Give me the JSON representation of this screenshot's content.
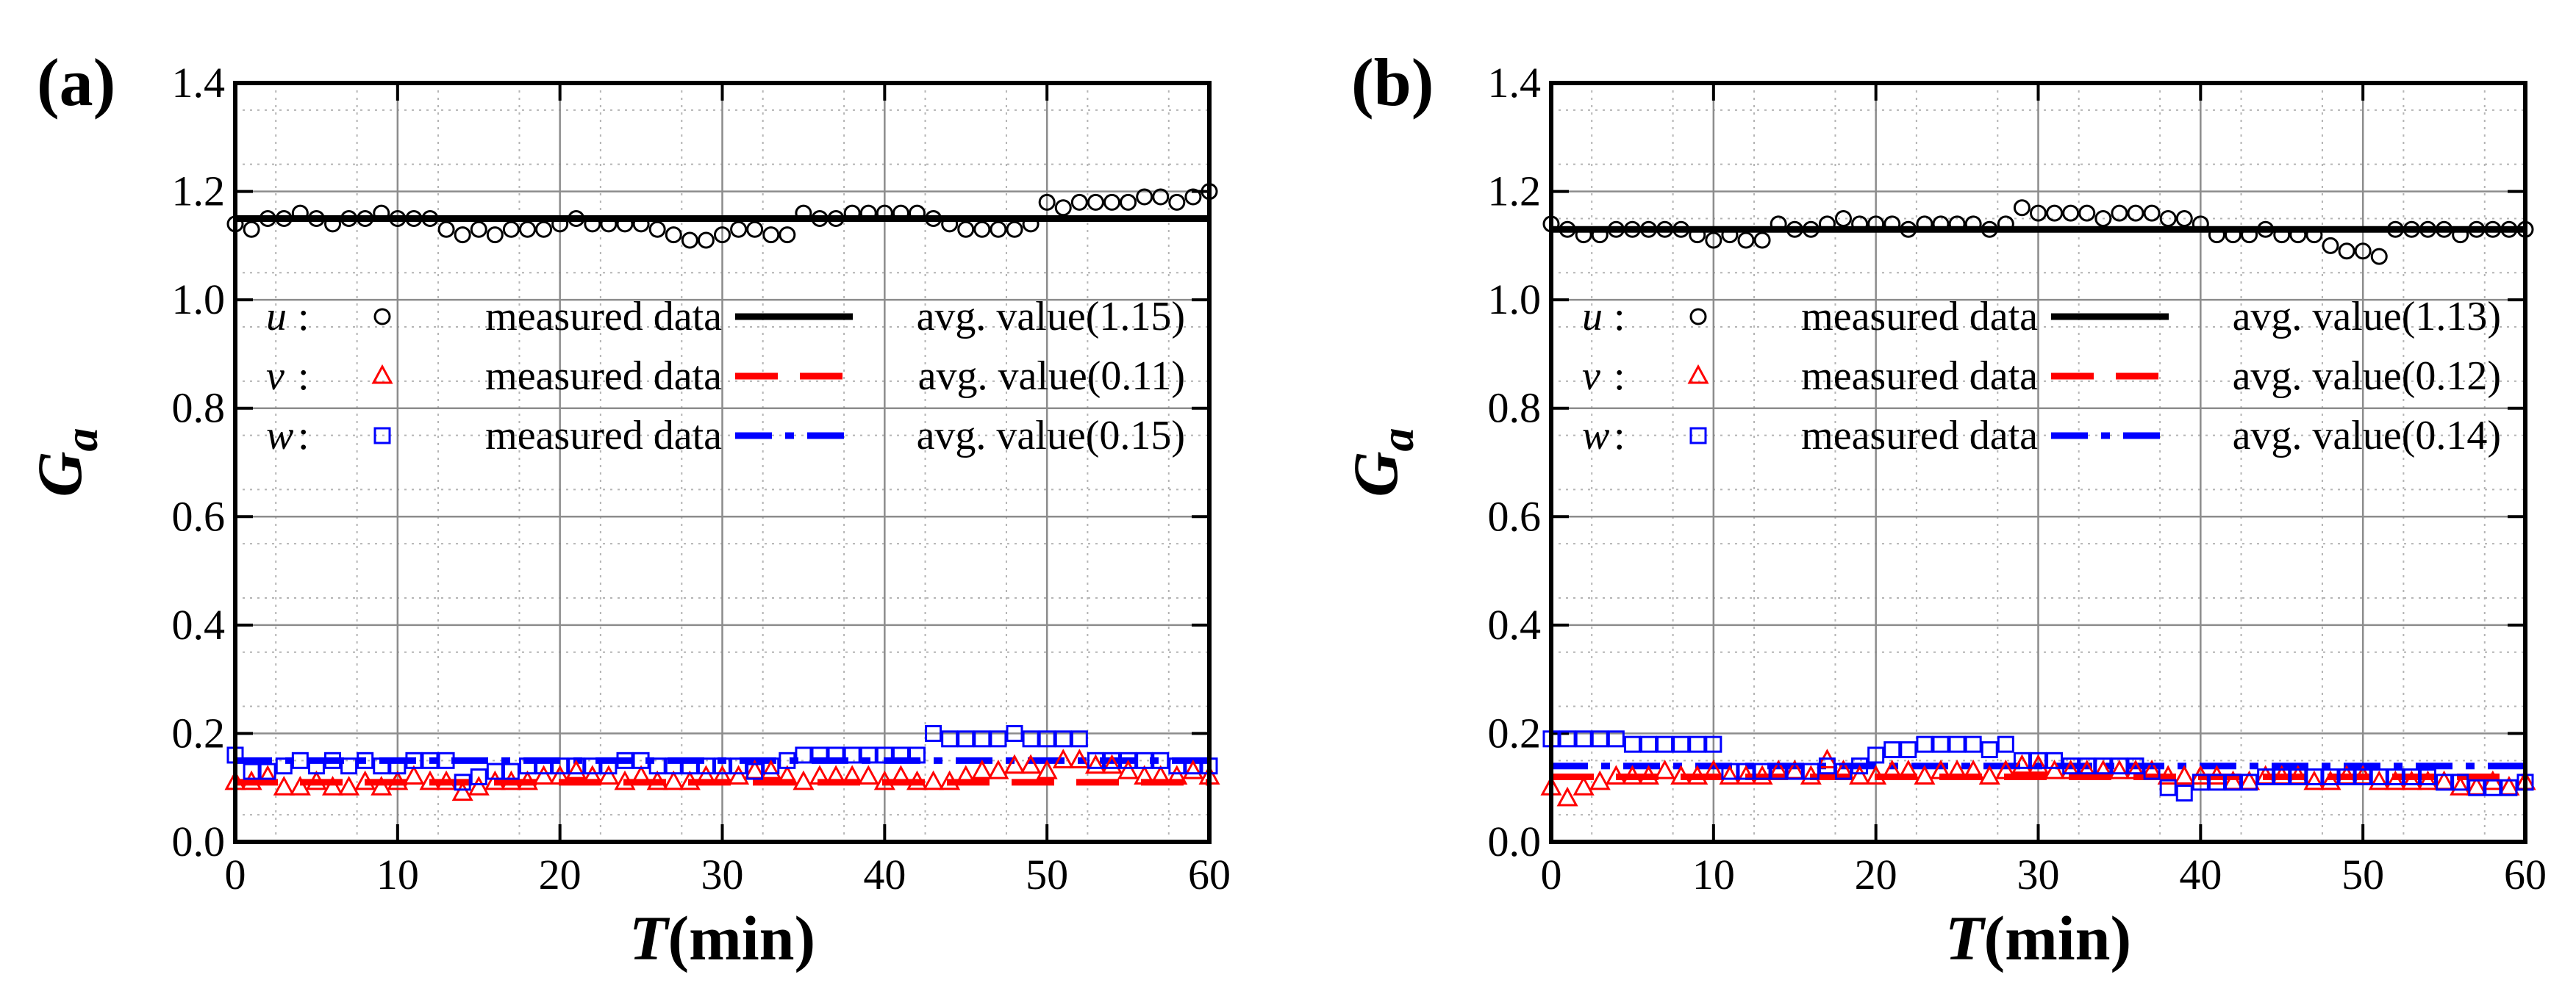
{
  "chart_data": [
    {
      "panel_label": "(a)",
      "type": "scatter",
      "title": "",
      "xlabel_main": "T",
      "xlabel_unit": "(min)",
      "ylabel_main": "G",
      "ylabel_sub": "a",
      "xlim": [
        0,
        60
      ],
      "ylim": [
        0.0,
        1.4
      ],
      "xticks": [
        "0",
        "10",
        "20",
        "30",
        "40",
        "50",
        "60"
      ],
      "yticks": [
        "0.0",
        "0.2",
        "0.4",
        "0.6",
        "0.8",
        "1.0",
        "1.2",
        "1.4"
      ],
      "grid": true,
      "series": [
        {
          "component": "u",
          "marker": "circle",
          "color": "#000000",
          "measured_label": "measured data",
          "avg_label": "avg. value(1.15)",
          "avg": 1.15,
          "line_style": "solid",
          "x": [
            0,
            1,
            2,
            3,
            4,
            5,
            6,
            7,
            8,
            9,
            10,
            11,
            12,
            13,
            14,
            15,
            16,
            17,
            18,
            19,
            20,
            21,
            22,
            23,
            24,
            25,
            26,
            27,
            28,
            29,
            30,
            31,
            32,
            33,
            34,
            35,
            36,
            37,
            38,
            39,
            40,
            41,
            42,
            43,
            44,
            45,
            46,
            47,
            48,
            49,
            50,
            51,
            52,
            53,
            54,
            55,
            56,
            57,
            58,
            59,
            60
          ],
          "values": [
            1.14,
            1.13,
            1.15,
            1.15,
            1.16,
            1.15,
            1.14,
            1.15,
            1.15,
            1.16,
            1.15,
            1.15,
            1.15,
            1.13,
            1.12,
            1.13,
            1.12,
            1.13,
            1.13,
            1.13,
            1.14,
            1.15,
            1.14,
            1.14,
            1.14,
            1.14,
            1.13,
            1.12,
            1.11,
            1.11,
            1.12,
            1.13,
            1.13,
            1.12,
            1.12,
            1.16,
            1.15,
            1.15,
            1.16,
            1.16,
            1.16,
            1.16,
            1.16,
            1.15,
            1.14,
            1.13,
            1.13,
            1.13,
            1.13,
            1.14,
            1.18,
            1.17,
            1.18,
            1.18,
            1.18,
            1.18,
            1.19,
            1.19,
            1.18,
            1.19,
            1.2
          ]
        },
        {
          "component": "v",
          "marker": "triangle",
          "color": "#ff0000",
          "measured_label": "measured data",
          "avg_label": "avg. value(0.11)",
          "avg": 0.11,
          "line_style": "dashed",
          "x": [
            0,
            1,
            2,
            3,
            4,
            5,
            6,
            7,
            8,
            9,
            10,
            11,
            12,
            13,
            14,
            15,
            16,
            17,
            18,
            19,
            20,
            21,
            22,
            23,
            24,
            25,
            26,
            27,
            28,
            29,
            30,
            31,
            32,
            33,
            34,
            35,
            36,
            37,
            38,
            39,
            40,
            41,
            42,
            43,
            44,
            45,
            46,
            47,
            48,
            49,
            50,
            51,
            52,
            53,
            54,
            55,
            56,
            57,
            58,
            59,
            60
          ],
          "values": [
            0.11,
            0.11,
            0.12,
            0.1,
            0.1,
            0.11,
            0.1,
            0.1,
            0.11,
            0.1,
            0.11,
            0.12,
            0.11,
            0.11,
            0.09,
            0.1,
            0.11,
            0.11,
            0.11,
            0.12,
            0.12,
            0.13,
            0.12,
            0.12,
            0.11,
            0.12,
            0.11,
            0.11,
            0.11,
            0.12,
            0.12,
            0.12,
            0.13,
            0.13,
            0.12,
            0.11,
            0.12,
            0.12,
            0.12,
            0.12,
            0.11,
            0.12,
            0.11,
            0.11,
            0.11,
            0.12,
            0.13,
            0.13,
            0.14,
            0.14,
            0.13,
            0.15,
            0.15,
            0.14,
            0.14,
            0.13,
            0.12,
            0.12,
            0.12,
            0.13,
            0.12
          ]
        },
        {
          "component": "w",
          "marker": "square",
          "color": "#0000ff",
          "measured_label": "measured data",
          "avg_label": "avg. value(0.15)",
          "avg": 0.15,
          "line_style": "dashdot",
          "x": [
            0,
            1,
            2,
            3,
            4,
            5,
            6,
            7,
            8,
            9,
            10,
            11,
            12,
            13,
            14,
            15,
            16,
            17,
            18,
            19,
            20,
            21,
            22,
            23,
            24,
            25,
            26,
            27,
            28,
            29,
            30,
            31,
            32,
            33,
            34,
            35,
            36,
            37,
            38,
            39,
            40,
            41,
            42,
            43,
            44,
            45,
            46,
            47,
            48,
            49,
            50,
            51,
            52,
            53,
            54,
            55,
            56,
            57,
            58,
            59,
            60
          ],
          "values": [
            0.16,
            0.13,
            0.13,
            0.14,
            0.15,
            0.14,
            0.15,
            0.14,
            0.15,
            0.14,
            0.14,
            0.15,
            0.15,
            0.15,
            0.11,
            0.12,
            0.13,
            0.13,
            0.14,
            0.14,
            0.14,
            0.14,
            0.14,
            0.14,
            0.15,
            0.15,
            0.14,
            0.14,
            0.14,
            0.14,
            0.14,
            0.14,
            0.13,
            0.14,
            0.15,
            0.16,
            0.16,
            0.16,
            0.16,
            0.16,
            0.16,
            0.16,
            0.16,
            0.2,
            0.19,
            0.19,
            0.19,
            0.19,
            0.2,
            0.19,
            0.19,
            0.19,
            0.19,
            0.15,
            0.15,
            0.15,
            0.15,
            0.15,
            0.14,
            0.14,
            0.14
          ]
        }
      ]
    },
    {
      "panel_label": "(b)",
      "type": "scatter",
      "title": "",
      "xlabel_main": "T",
      "xlabel_unit": "(min)",
      "ylabel_main": "G",
      "ylabel_sub": "a",
      "xlim": [
        0,
        60
      ],
      "ylim": [
        0.0,
        1.4
      ],
      "xticks": [
        "0",
        "10",
        "20",
        "30",
        "40",
        "50",
        "60"
      ],
      "yticks": [
        "0.0",
        "0.2",
        "0.4",
        "0.6",
        "0.8",
        "1.0",
        "1.2",
        "1.4"
      ],
      "grid": true,
      "series": [
        {
          "component": "u",
          "marker": "circle",
          "color": "#000000",
          "measured_label": "measured data",
          "avg_label": "avg. value(1.13)",
          "avg": 1.13,
          "line_style": "solid",
          "x": [
            0,
            1,
            2,
            3,
            4,
            5,
            6,
            7,
            8,
            9,
            10,
            11,
            12,
            13,
            14,
            15,
            16,
            17,
            18,
            19,
            20,
            21,
            22,
            23,
            24,
            25,
            26,
            27,
            28,
            29,
            30,
            31,
            32,
            33,
            34,
            35,
            36,
            37,
            38,
            39,
            40,
            41,
            42,
            43,
            44,
            45,
            46,
            47,
            48,
            49,
            50,
            51,
            52,
            53,
            54,
            55,
            56,
            57,
            58,
            59,
            60
          ],
          "values": [
            1.14,
            1.13,
            1.12,
            1.12,
            1.13,
            1.13,
            1.13,
            1.13,
            1.13,
            1.12,
            1.11,
            1.12,
            1.11,
            1.11,
            1.14,
            1.13,
            1.13,
            1.14,
            1.15,
            1.14,
            1.14,
            1.14,
            1.13,
            1.14,
            1.14,
            1.14,
            1.14,
            1.13,
            1.14,
            1.17,
            1.16,
            1.16,
            1.16,
            1.16,
            1.15,
            1.16,
            1.16,
            1.16,
            1.15,
            1.15,
            1.14,
            1.12,
            1.12,
            1.12,
            1.13,
            1.12,
            1.12,
            1.12,
            1.1,
            1.09,
            1.09,
            1.08,
            1.13,
            1.13,
            1.13,
            1.13,
            1.12,
            1.13,
            1.13,
            1.13,
            1.13
          ]
        },
        {
          "component": "v",
          "marker": "triangle",
          "color": "#ff0000",
          "measured_label": "measured data",
          "avg_label": "avg. value(0.12)",
          "avg": 0.12,
          "line_style": "dashed",
          "x": [
            0,
            1,
            2,
            3,
            4,
            5,
            6,
            7,
            8,
            9,
            10,
            11,
            12,
            13,
            14,
            15,
            16,
            17,
            18,
            19,
            20,
            21,
            22,
            23,
            24,
            25,
            26,
            27,
            28,
            29,
            30,
            31,
            32,
            33,
            34,
            35,
            36,
            37,
            38,
            39,
            40,
            41,
            42,
            43,
            44,
            45,
            46,
            47,
            48,
            49,
            50,
            51,
            52,
            53,
            54,
            55,
            56,
            57,
            58,
            59,
            60
          ],
          "values": [
            0.1,
            0.08,
            0.1,
            0.11,
            0.12,
            0.12,
            0.12,
            0.13,
            0.12,
            0.12,
            0.13,
            0.12,
            0.12,
            0.12,
            0.13,
            0.13,
            0.12,
            0.15,
            0.13,
            0.12,
            0.12,
            0.13,
            0.13,
            0.12,
            0.13,
            0.13,
            0.13,
            0.12,
            0.13,
            0.14,
            0.14,
            0.13,
            0.13,
            0.13,
            0.13,
            0.13,
            0.13,
            0.13,
            0.12,
            0.12,
            0.12,
            0.12,
            0.11,
            0.11,
            0.12,
            0.12,
            0.12,
            0.11,
            0.11,
            0.12,
            0.12,
            0.11,
            0.11,
            0.11,
            0.11,
            0.11,
            0.1,
            0.1,
            0.11,
            0.1,
            0.11
          ]
        },
        {
          "component": "w",
          "marker": "square",
          "color": "#0000ff",
          "measured_label": "measured data",
          "avg_label": "avg. value(0.14)",
          "avg": 0.14,
          "line_style": "dashdot",
          "x": [
            0,
            1,
            2,
            3,
            4,
            5,
            6,
            7,
            8,
            9,
            10,
            11,
            12,
            13,
            14,
            15,
            16,
            17,
            18,
            19,
            20,
            21,
            22,
            23,
            24,
            25,
            26,
            27,
            28,
            29,
            30,
            31,
            32,
            33,
            34,
            35,
            36,
            37,
            38,
            39,
            40,
            41,
            42,
            43,
            44,
            45,
            46,
            47,
            48,
            49,
            50,
            51,
            52,
            53,
            54,
            55,
            56,
            57,
            58,
            59,
            60
          ],
          "values": [
            0.19,
            0.19,
            0.19,
            0.19,
            0.19,
            0.18,
            0.18,
            0.18,
            0.18,
            0.18,
            0.18,
            0.13,
            0.13,
            0.13,
            0.13,
            0.13,
            0.13,
            0.14,
            0.13,
            0.14,
            0.16,
            0.17,
            0.17,
            0.18,
            0.18,
            0.18,
            0.18,
            0.17,
            0.18,
            0.15,
            0.15,
            0.15,
            0.14,
            0.14,
            0.14,
            0.14,
            0.14,
            0.13,
            0.1,
            0.09,
            0.11,
            0.11,
            0.11,
            0.11,
            0.12,
            0.12,
            0.12,
            0.12,
            0.12,
            0.12,
            0.12,
            0.12,
            0.12,
            0.12,
            0.12,
            0.11,
            0.11,
            0.1,
            0.1,
            0.1,
            0.11
          ]
        }
      ]
    }
  ]
}
